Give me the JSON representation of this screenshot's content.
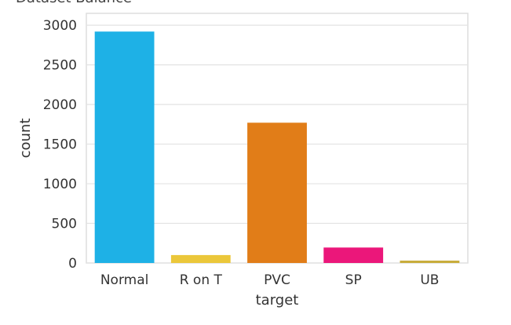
{
  "chart_data": {
    "type": "bar",
    "title": "Dataset Balance",
    "xlabel": "target",
    "ylabel": "count",
    "categories": [
      "Normal",
      "R on T",
      "PVC",
      "SP",
      "UB"
    ],
    "values": [
      2920,
      100,
      1770,
      195,
      30
    ],
    "colors": [
      "#1eb1e6",
      "#ebc73a",
      "#e17d18",
      "#eb177a",
      "#c8ad3c"
    ],
    "ylim": [
      0,
      3150
    ],
    "yticks": [
      0,
      500,
      1000,
      1500,
      2000,
      2500,
      3000
    ],
    "grid": true,
    "legend": "none"
  }
}
